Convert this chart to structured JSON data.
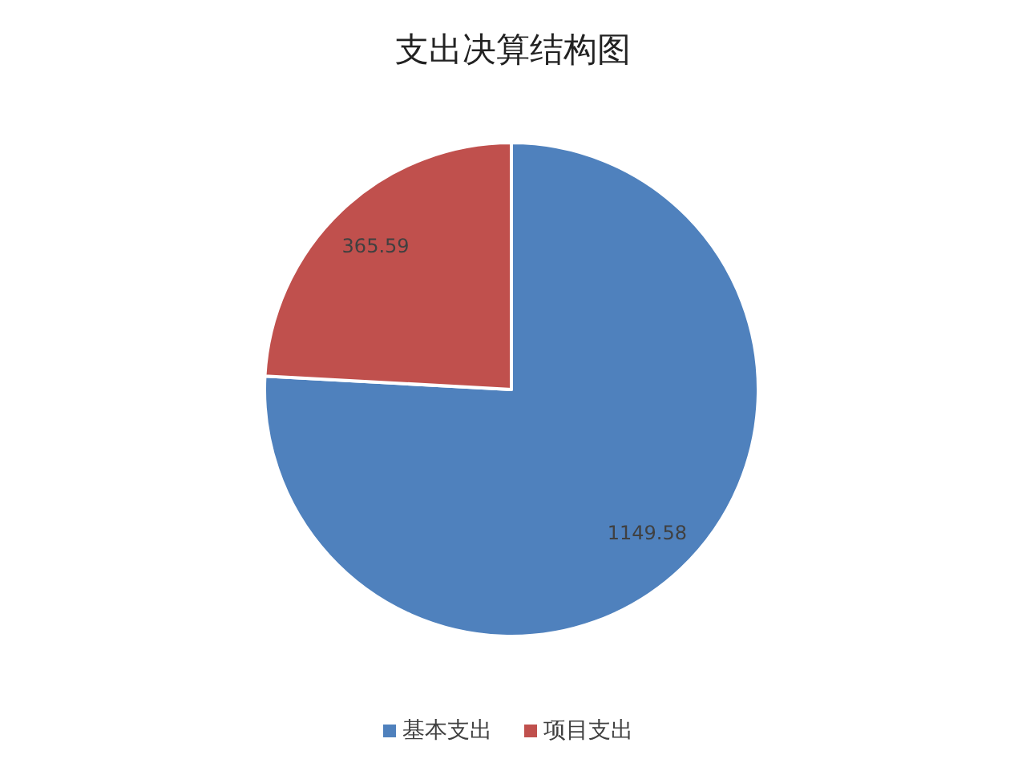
{
  "chart_data": {
    "type": "pie",
    "title": "支出决算结构图",
    "categories": [
      "基本支出",
      "项目支出"
    ],
    "values": [
      1149.58,
      365.59
    ],
    "colors": [
      "#4f81bd",
      "#c0504d"
    ],
    "data_labels": true,
    "legend": "bottom"
  }
}
